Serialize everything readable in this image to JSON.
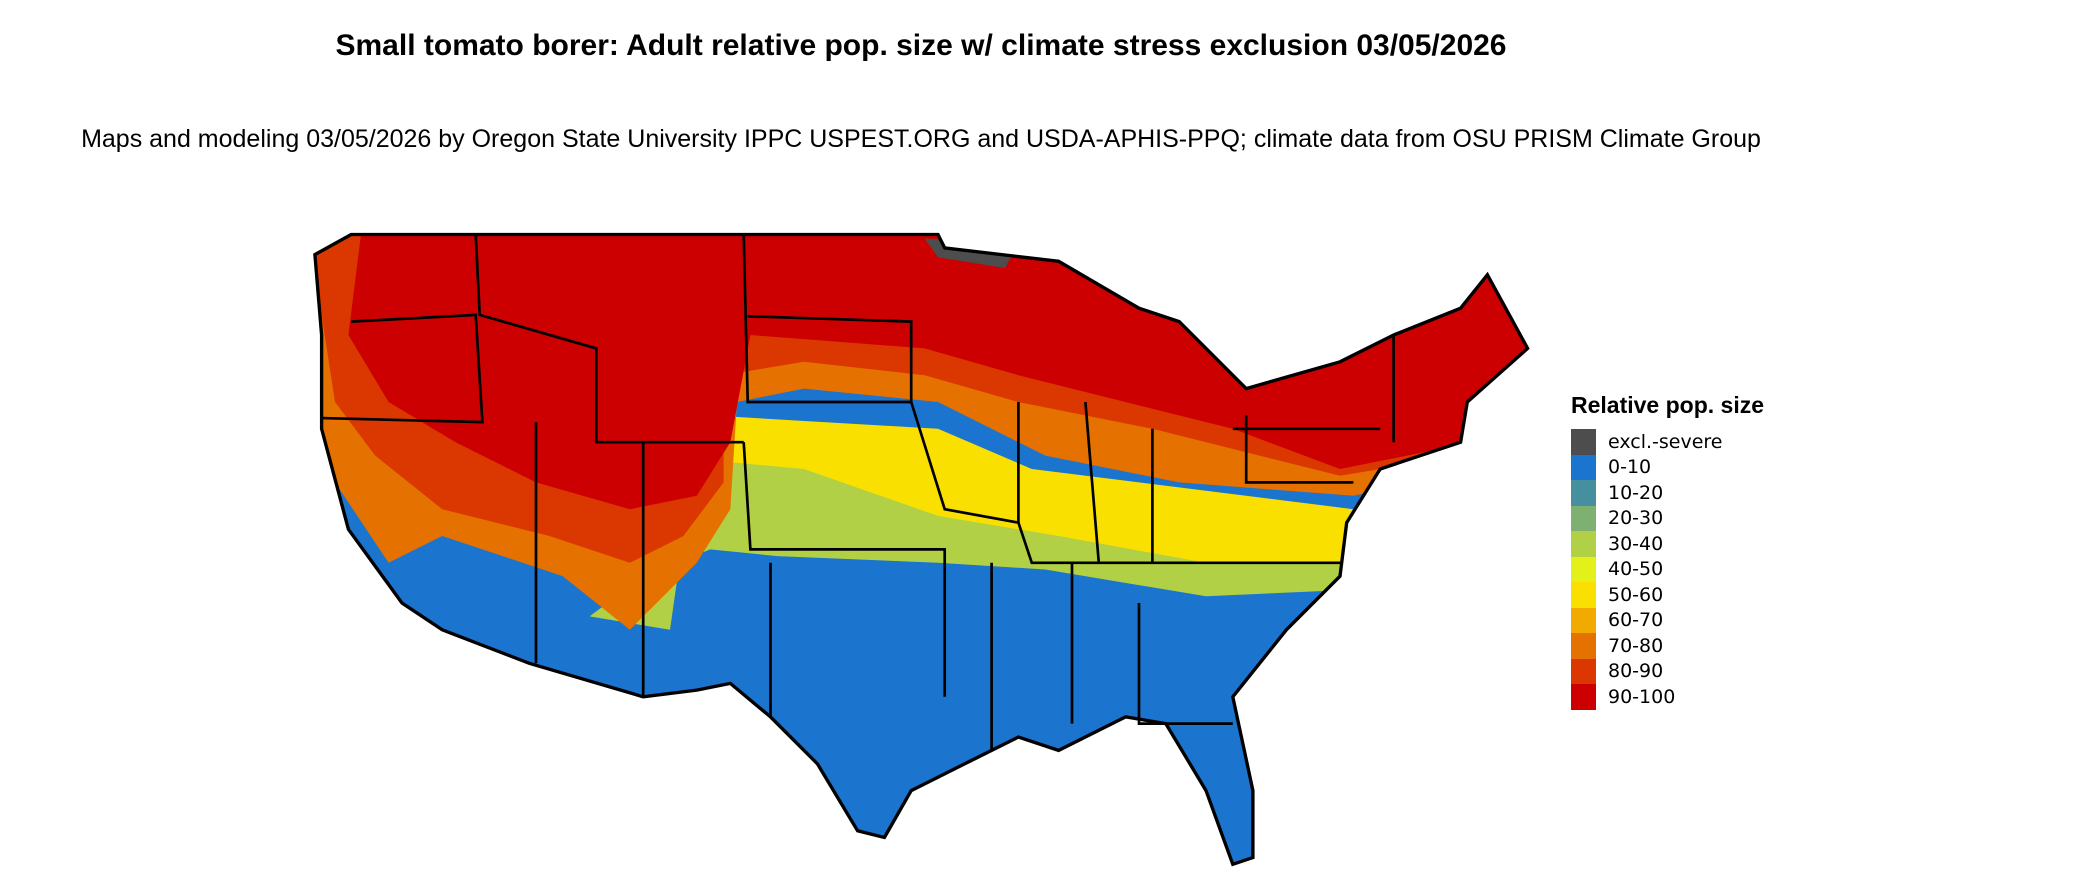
{
  "title": "Small tomato borer: Adult relative pop. size w/ climate stress exclusion 03/05/2026",
  "subtitle": "Maps and modeling 03/05/2026 by Oregon State University IPPC USPEST.ORG and USDA-APHIS-PPQ; climate data from OSU PRISM Climate Group",
  "legend": {
    "title": "Relative pop. size",
    "items": [
      {
        "label": "excl.-severe",
        "color": "#4d4d4d"
      },
      {
        "label": "0-10",
        "color": "#1b74cd"
      },
      {
        "label": "10-20",
        "color": "#458f9e"
      },
      {
        "label": "20-30",
        "color": "#7db071"
      },
      {
        "label": "30-40",
        "color": "#b2d045"
      },
      {
        "label": "40-50",
        "color": "#e3f019"
      },
      {
        "label": "50-60",
        "color": "#f9e000"
      },
      {
        "label": "60-70",
        "color": "#f0aa00"
      },
      {
        "label": "70-80",
        "color": "#e57100"
      },
      {
        "label": "80-90",
        "color": "#db3700"
      },
      {
        "label": "90-100",
        "color": "#cc0000"
      }
    ]
  }
}
